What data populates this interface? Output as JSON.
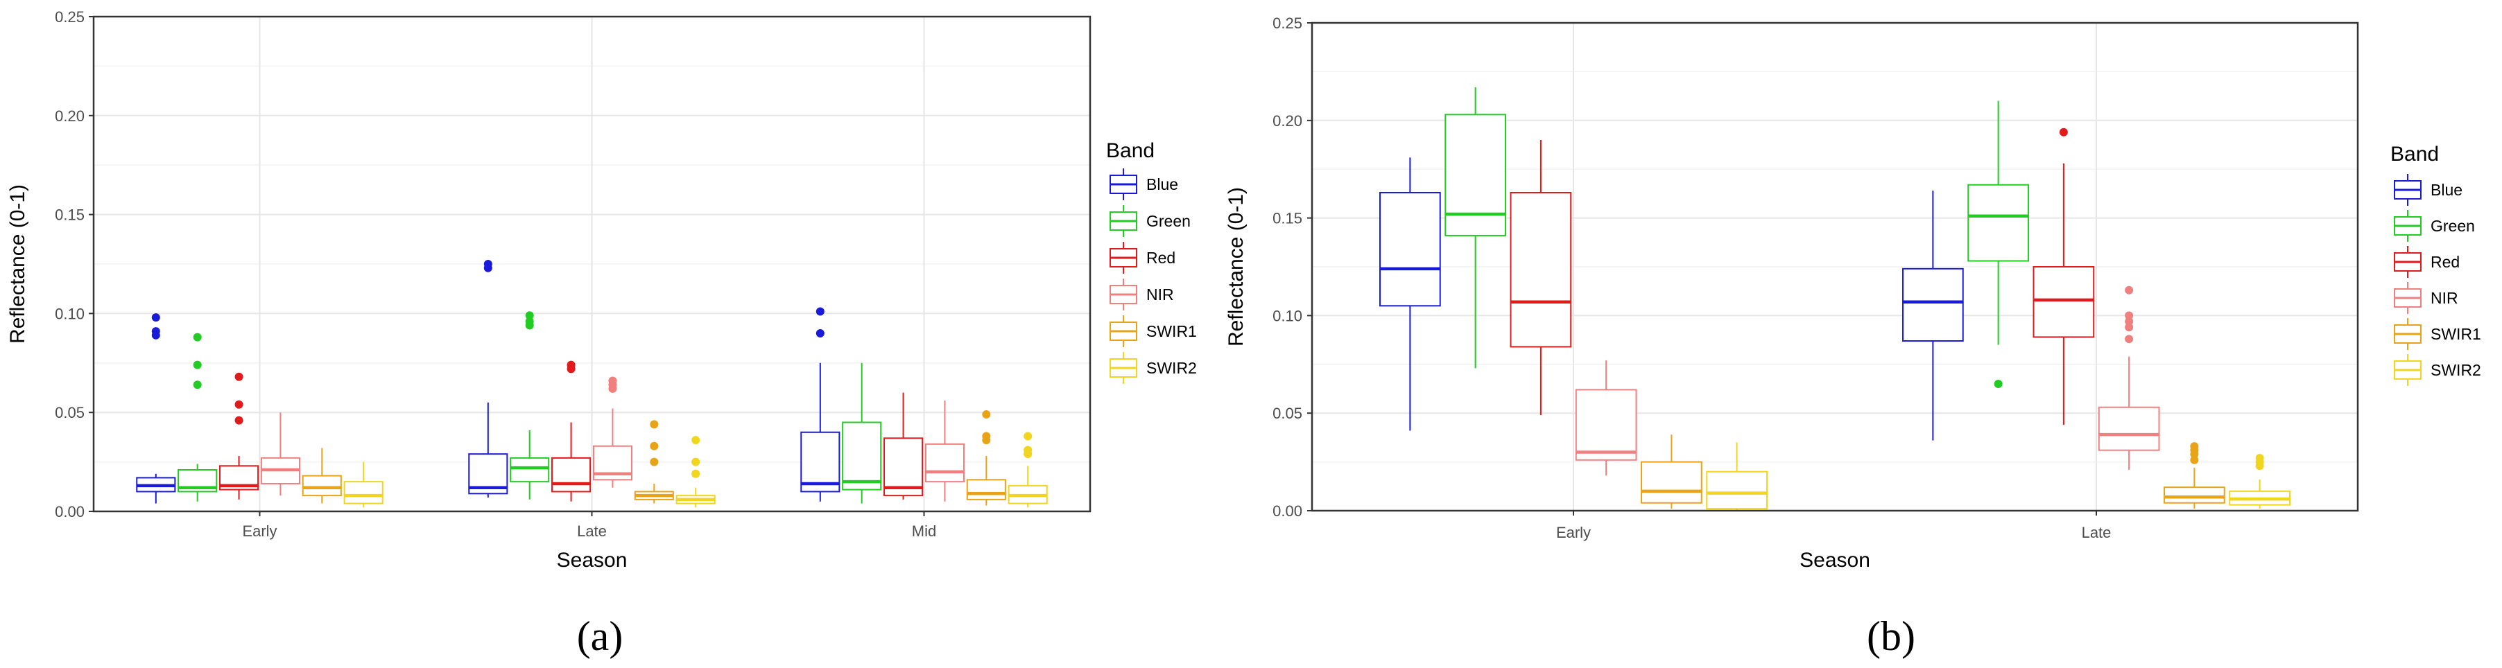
{
  "panel_labels": [
    "(a)",
    "(b)"
  ],
  "chart_data": [
    {
      "type": "boxplot",
      "panel": "(a)",
      "xlabel": "Season",
      "ylabel": "Reflectance (0-1)",
      "ylim": [
        0,
        0.25
      ],
      "yticks": [
        "0.00",
        "0.05",
        "0.10",
        "0.15",
        "0.20",
        "0.25"
      ],
      "grid": true,
      "legend_position": "right",
      "legend_title": "Band",
      "categories": [
        "Early",
        "Late",
        "Mid"
      ],
      "series": [
        {
          "name": "Blue",
          "color": "#1a1adb",
          "boxes": [
            {
              "whisker_low": 0.004,
              "q1": 0.01,
              "median": 0.013,
              "q3": 0.017,
              "whisker_high": 0.019,
              "outliers": [
                0.089,
                0.091,
                0.098
              ]
            },
            {
              "whisker_low": 0.007,
              "q1": 0.009,
              "median": 0.012,
              "q3": 0.029,
              "whisker_high": 0.055,
              "outliers": [
                0.123,
                0.125
              ]
            },
            {
              "whisker_low": 0.005,
              "q1": 0.01,
              "median": 0.014,
              "q3": 0.04,
              "whisker_high": 0.075,
              "outliers": [
                0.09,
                0.101
              ]
            }
          ]
        },
        {
          "name": "Green",
          "color": "#22cc22",
          "boxes": [
            {
              "whisker_low": 0.005,
              "q1": 0.01,
              "median": 0.012,
              "q3": 0.021,
              "whisker_high": 0.024,
              "outliers": [
                0.064,
                0.074,
                0.088
              ]
            },
            {
              "whisker_low": 0.006,
              "q1": 0.015,
              "median": 0.022,
              "q3": 0.027,
              "whisker_high": 0.041,
              "outliers": [
                0.094,
                0.096,
                0.099
              ]
            },
            {
              "whisker_low": 0.004,
              "q1": 0.011,
              "median": 0.015,
              "q3": 0.045,
              "whisker_high": 0.075,
              "outliers": []
            }
          ]
        },
        {
          "name": "Red",
          "color": "#e31a1c",
          "boxes": [
            {
              "whisker_low": 0.006,
              "q1": 0.011,
              "median": 0.013,
              "q3": 0.023,
              "whisker_high": 0.028,
              "outliers": [
                0.046,
                0.054,
                0.068
              ]
            },
            {
              "whisker_low": 0.005,
              "q1": 0.01,
              "median": 0.014,
              "q3": 0.027,
              "whisker_high": 0.045,
              "outliers": [
                0.072,
                0.074
              ]
            },
            {
              "whisker_low": 0.006,
              "q1": 0.008,
              "median": 0.012,
              "q3": 0.037,
              "whisker_high": 0.06,
              "outliers": []
            }
          ]
        },
        {
          "name": "NIR",
          "color": "#f08080",
          "boxes": [
            {
              "whisker_low": 0.008,
              "q1": 0.014,
              "median": 0.021,
              "q3": 0.027,
              "whisker_high": 0.05,
              "outliers": []
            },
            {
              "whisker_low": 0.012,
              "q1": 0.016,
              "median": 0.019,
              "q3": 0.033,
              "whisker_high": 0.052,
              "outliers": [
                0.062,
                0.064,
                0.066
              ]
            },
            {
              "whisker_low": 0.005,
              "q1": 0.015,
              "median": 0.02,
              "q3": 0.034,
              "whisker_high": 0.056,
              "outliers": []
            }
          ]
        },
        {
          "name": "SWIR1",
          "color": "#e8a317",
          "boxes": [
            {
              "whisker_low": 0.004,
              "q1": 0.008,
              "median": 0.012,
              "q3": 0.018,
              "whisker_high": 0.032,
              "outliers": []
            },
            {
              "whisker_low": 0.004,
              "q1": 0.006,
              "median": 0.008,
              "q3": 0.01,
              "whisker_high": 0.014,
              "outliers": [
                0.025,
                0.033,
                0.044
              ]
            },
            {
              "whisker_low": 0.003,
              "q1": 0.006,
              "median": 0.009,
              "q3": 0.016,
              "whisker_high": 0.028,
              "outliers": [
                0.036,
                0.038,
                0.049
              ]
            }
          ]
        },
        {
          "name": "SWIR2",
          "color": "#f2d51e",
          "boxes": [
            {
              "whisker_low": 0.002,
              "q1": 0.004,
              "median": 0.008,
              "q3": 0.015,
              "whisker_high": 0.025,
              "outliers": []
            },
            {
              "whisker_low": 0.002,
              "q1": 0.004,
              "median": 0.006,
              "q3": 0.008,
              "whisker_high": 0.012,
              "outliers": [
                0.019,
                0.025,
                0.036
              ]
            },
            {
              "whisker_low": 0.002,
              "q1": 0.004,
              "median": 0.008,
              "q3": 0.013,
              "whisker_high": 0.023,
              "outliers": [
                0.029,
                0.031,
                0.038
              ]
            }
          ]
        }
      ]
    },
    {
      "type": "boxplot",
      "panel": "(b)",
      "xlabel": "Season",
      "ylabel": "Reflectance (0-1)",
      "ylim": [
        0,
        0.25
      ],
      "yticks": [
        "0.00",
        "0.05",
        "0.10",
        "0.15",
        "0.20",
        "0.25"
      ],
      "grid": true,
      "legend_position": "right",
      "legend_title": "Band",
      "categories": [
        "Early",
        "Late"
      ],
      "series": [
        {
          "name": "Blue",
          "color": "#1a1adb",
          "boxes": [
            {
              "whisker_low": 0.041,
              "q1": 0.105,
              "median": 0.124,
              "q3": 0.163,
              "whisker_high": 0.181,
              "outliers": []
            },
            {
              "whisker_low": 0.036,
              "q1": 0.087,
              "median": 0.107,
              "q3": 0.124,
              "whisker_high": 0.164,
              "outliers": []
            }
          ]
        },
        {
          "name": "Green",
          "color": "#22cc22",
          "boxes": [
            {
              "whisker_low": 0.073,
              "q1": 0.141,
              "median": 0.152,
              "q3": 0.203,
              "whisker_high": 0.217,
              "outliers": []
            },
            {
              "whisker_low": 0.085,
              "q1": 0.128,
              "median": 0.151,
              "q3": 0.167,
              "whisker_high": 0.21,
              "outliers": [
                0.065
              ]
            }
          ]
        },
        {
          "name": "Red",
          "color": "#e31a1c",
          "boxes": [
            {
              "whisker_low": 0.049,
              "q1": 0.084,
              "median": 0.107,
              "q3": 0.163,
              "whisker_high": 0.19,
              "outliers": []
            },
            {
              "whisker_low": 0.044,
              "q1": 0.089,
              "median": 0.108,
              "q3": 0.125,
              "whisker_high": 0.178,
              "outliers": [
                0.194
              ]
            }
          ]
        },
        {
          "name": "NIR",
          "color": "#f08080",
          "boxes": [
            {
              "whisker_low": 0.018,
              "q1": 0.026,
              "median": 0.03,
              "q3": 0.062,
              "whisker_high": 0.077,
              "outliers": []
            },
            {
              "whisker_low": 0.021,
              "q1": 0.031,
              "median": 0.039,
              "q3": 0.053,
              "whisker_high": 0.079,
              "outliers": [
                0.088,
                0.094,
                0.097,
                0.1,
                0.113
              ]
            }
          ]
        },
        {
          "name": "SWIR1",
          "color": "#e8a317",
          "boxes": [
            {
              "whisker_low": 0.001,
              "q1": 0.004,
              "median": 0.01,
              "q3": 0.025,
              "whisker_high": 0.039,
              "outliers": []
            },
            {
              "whisker_low": 0.001,
              "q1": 0.004,
              "median": 0.007,
              "q3": 0.012,
              "whisker_high": 0.022,
              "outliers": [
                0.026,
                0.029,
                0.031,
                0.033
              ]
            }
          ]
        },
        {
          "name": "SWIR2",
          "color": "#f2d51e",
          "boxes": [
            {
              "whisker_low": 0.0,
              "q1": 0.001,
              "median": 0.009,
              "q3": 0.02,
              "whisker_high": 0.035,
              "outliers": []
            },
            {
              "whisker_low": 0.001,
              "q1": 0.003,
              "median": 0.006,
              "q3": 0.01,
              "whisker_high": 0.016,
              "outliers": [
                0.023,
                0.025,
                0.027
              ]
            }
          ]
        }
      ]
    }
  ]
}
